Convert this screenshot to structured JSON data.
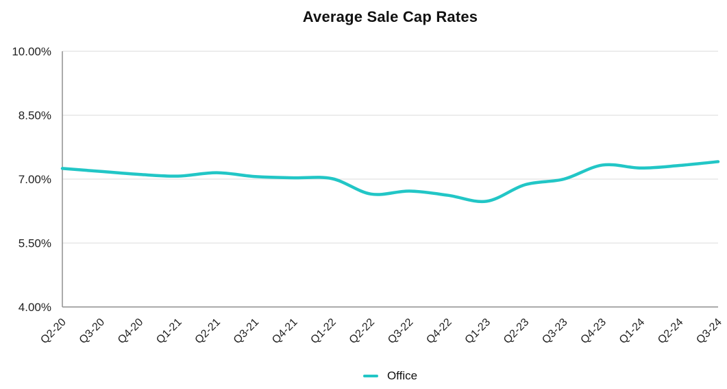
{
  "chart_data": {
    "type": "line",
    "title": "Average Sale Cap Rates",
    "categories": [
      "Q2-20",
      "Q3-20",
      "Q4-20",
      "Q1-21",
      "Q2-21",
      "Q3-21",
      "Q4-21",
      "Q1-22",
      "Q2-22",
      "Q3-22",
      "Q4-22",
      "Q1-23",
      "Q2-23",
      "Q3-23",
      "Q4-23",
      "Q1-24",
      "Q2-24",
      "Q3-24"
    ],
    "series": [
      {
        "name": "Office",
        "color": "#22C6C6",
        "values": [
          7.25,
          7.18,
          7.11,
          7.07,
          7.15,
          7.06,
          7.03,
          7.01,
          6.65,
          6.72,
          6.62,
          6.48,
          6.87,
          7.0,
          7.33,
          7.26,
          7.32,
          7.41
        ]
      }
    ],
    "ylim": [
      4.0,
      10.0
    ],
    "yticks": [
      4.0,
      5.5,
      7.0,
      8.5,
      10.0
    ],
    "ytick_labels": [
      "4.00%",
      "5.50%",
      "7.00%",
      "8.50%",
      "10.00%"
    ],
    "grid": true,
    "legend_position": "bottom",
    "x_label_rotation": -45,
    "smooth": true
  },
  "colors": {
    "line": "#22C6C6",
    "gridline": "#E2E2E2",
    "axis": "#8F8F8F",
    "text": "#1F1F1F",
    "background": "#FFFFFF"
  }
}
